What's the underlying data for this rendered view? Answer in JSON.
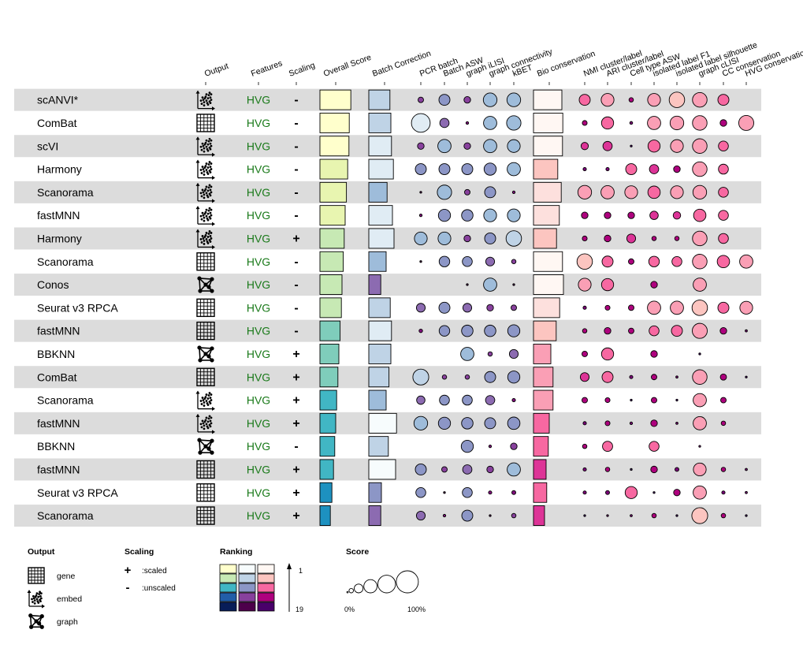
{
  "chart_data": {
    "type": "table",
    "columns": [
      {
        "key": "output",
        "label": "Output",
        "kind": "icon"
      },
      {
        "key": "features",
        "label": "Features",
        "kind": "text"
      },
      {
        "key": "scaling",
        "label": "Scaling",
        "kind": "text"
      },
      {
        "key": "overall",
        "label": "Overall Score",
        "kind": "bar",
        "palette": "overall"
      },
      {
        "key": "batch",
        "label": "Batch Correction",
        "kind": "bar",
        "palette": "batch"
      },
      {
        "key": "pcr",
        "label": "PCR batch",
        "kind": "circle",
        "palette": "batch"
      },
      {
        "key": "basw",
        "label": "Batch ASW",
        "kind": "circle",
        "palette": "batch"
      },
      {
        "key": "ilisi",
        "label": "graph iLISI",
        "kind": "circle",
        "palette": "batch"
      },
      {
        "key": "gconn",
        "label": "graph connectivity",
        "kind": "circle",
        "palette": "batch"
      },
      {
        "key": "kbet",
        "label": "kBET",
        "kind": "circle",
        "palette": "batch"
      },
      {
        "key": "bio",
        "label": "Bio conservation",
        "kind": "bar",
        "palette": "bio"
      },
      {
        "key": "nmi",
        "label": "NMI cluster/label",
        "kind": "circle",
        "palette": "bio"
      },
      {
        "key": "ari",
        "label": "ARI cluster/label",
        "kind": "circle",
        "palette": "bio"
      },
      {
        "key": "casw",
        "label": "Cell type ASW",
        "kind": "circle",
        "palette": "bio"
      },
      {
        "key": "if1",
        "label": "isolated label F1",
        "kind": "circle",
        "palette": "bio"
      },
      {
        "key": "isil",
        "label": "isolated label silhouette",
        "kind": "circle",
        "palette": "bio"
      },
      {
        "key": "clisi",
        "label": "graph cLISI",
        "kind": "circle",
        "palette": "bio"
      },
      {
        "key": "cc",
        "label": "CC conservation",
        "kind": "circle",
        "palette": "bio"
      },
      {
        "key": "hvg",
        "label": "HVG conservation",
        "kind": "circle",
        "palette": "bio"
      }
    ],
    "score_range": [
      0,
      1
    ],
    "rank_range": [
      1,
      19
    ],
    "rows": [
      {
        "method": "scANVI*",
        "output": "embed",
        "features": "HVG",
        "scaling": "-",
        "overall": 0.98,
        "batch": 0.67,
        "pcr": 0.25,
        "basw": 0.5,
        "ilisi": 0.3,
        "gconn": 0.62,
        "kbet": 0.62,
        "bio": 0.9,
        "nmi": 0.5,
        "ari": 0.58,
        "casw": 0.2,
        "if1": 0.58,
        "isil": 0.7,
        "clisi": 0.66,
        "cc": 0.5,
        "hvg": null
      },
      {
        "method": "ComBat",
        "output": "gene",
        "features": "HVG",
        "scaling": "-",
        "overall": 0.93,
        "batch": 0.7,
        "pcr": 0.85,
        "basw": 0.42,
        "ilisi": 0.12,
        "gconn": 0.6,
        "kbet": 0.65,
        "bio": 0.93,
        "nmi": 0.22,
        "ari": 0.55,
        "casw": 0.13,
        "if1": 0.6,
        "isil": 0.62,
        "clisi": 0.66,
        "cc": 0.3,
        "hvg": 0.68
      },
      {
        "method": "scVI",
        "output": "embed",
        "features": "HVG",
        "scaling": "-",
        "overall": 0.92,
        "batch": 0.72,
        "pcr": 0.3,
        "basw": 0.6,
        "ilisi": 0.3,
        "gconn": 0.6,
        "kbet": 0.58,
        "bio": 0.92,
        "nmi": 0.33,
        "ari": 0.42,
        "casw": 0.05,
        "if1": 0.55,
        "isil": 0.58,
        "clisi": 0.66,
        "cc": 0.45,
        "hvg": null
      },
      {
        "method": "Harmony",
        "output": "embed",
        "features": "HVG",
        "scaling": "-",
        "overall": 0.88,
        "batch": 0.78,
        "pcr": 0.5,
        "basw": 0.5,
        "ilisi": 0.5,
        "gconn": 0.55,
        "kbet": 0.6,
        "bio": 0.77,
        "nmi": 0.15,
        "ari": 0.15,
        "casw": 0.5,
        "if1": 0.42,
        "isil": 0.3,
        "clisi": 0.66,
        "cc": 0.45,
        "hvg": null
      },
      {
        "method": "Scanorama",
        "output": "embed",
        "features": "HVG",
        "scaling": "-",
        "overall": 0.84,
        "batch": 0.58,
        "pcr": 0.05,
        "basw": 0.65,
        "ilisi": 0.25,
        "gconn": 0.5,
        "kbet": 0.12,
        "bio": 0.88,
        "nmi": 0.62,
        "ari": 0.6,
        "casw": 0.58,
        "if1": 0.56,
        "isil": 0.58,
        "clisi": 0.62,
        "cc": 0.45,
        "hvg": null
      },
      {
        "method": "fastMNN",
        "output": "embed",
        "features": "HVG",
        "scaling": "-",
        "overall": 0.8,
        "batch": 0.75,
        "pcr": 0.12,
        "basw": 0.55,
        "ilisi": 0.52,
        "gconn": 0.58,
        "kbet": 0.58,
        "bio": 0.82,
        "nmi": 0.3,
        "ari": 0.3,
        "casw": 0.3,
        "if1": 0.38,
        "isil": 0.34,
        "clisi": 0.56,
        "cc": 0.45,
        "hvg": null
      },
      {
        "method": "Harmony",
        "output": "embed",
        "features": "HVG",
        "scaling": "+",
        "overall": 0.77,
        "batch": 0.8,
        "pcr": 0.58,
        "basw": 0.58,
        "ilisi": 0.3,
        "gconn": 0.5,
        "kbet": 0.7,
        "bio": 0.73,
        "nmi": 0.22,
        "ari": 0.3,
        "casw": 0.4,
        "if1": 0.2,
        "isil": 0.2,
        "clisi": 0.66,
        "cc": 0.45,
        "hvg": null
      },
      {
        "method": "Scanorama",
        "output": "gene",
        "features": "HVG",
        "scaling": "-",
        "overall": 0.74,
        "batch": 0.55,
        "pcr": 0.03,
        "basw": 0.48,
        "ilisi": 0.45,
        "gconn": 0.4,
        "kbet": 0.2,
        "bio": 0.92,
        "nmi": 0.7,
        "ari": 0.5,
        "casw": 0.25,
        "if1": 0.48,
        "isil": 0.45,
        "clisi": 0.66,
        "cc": 0.56,
        "hvg": 0.6
      },
      {
        "method": "Conos",
        "output": "graph",
        "features": "HVG",
        "scaling": "-",
        "overall": 0.7,
        "batch": 0.38,
        "pcr": null,
        "basw": null,
        "ilisi": 0.03,
        "gconn": 0.6,
        "kbet": 0.03,
        "bio": 0.95,
        "nmi": 0.58,
        "ari": 0.55,
        "casw": null,
        "if1": 0.3,
        "isil": null,
        "clisi": 0.6,
        "cc": null,
        "hvg": null
      },
      {
        "method": "Seurat v3 RPCA",
        "output": "gene",
        "features": "HVG",
        "scaling": "-",
        "overall": 0.68,
        "batch": 0.68,
        "pcr": 0.4,
        "basw": 0.5,
        "ilisi": 0.4,
        "gconn": 0.3,
        "kbet": 0.25,
        "bio": 0.83,
        "nmi": 0.15,
        "ari": 0.22,
        "casw": 0.25,
        "if1": 0.6,
        "isil": 0.6,
        "clisi": 0.7,
        "cc": 0.5,
        "hvg": 0.58
      },
      {
        "method": "fastMNN",
        "output": "gene",
        "features": "HVG",
        "scaling": "-",
        "overall": 0.64,
        "batch": 0.72,
        "pcr": 0.16,
        "basw": 0.48,
        "ilisi": 0.52,
        "gconn": 0.52,
        "kbet": 0.55,
        "bio": 0.72,
        "nmi": 0.2,
        "ari": 0.3,
        "casw": 0.25,
        "if1": 0.45,
        "isil": 0.5,
        "clisi": 0.68,
        "cc": 0.3,
        "hvg": 0.1
      },
      {
        "method": "BBKNN",
        "output": "graph",
        "features": "HVG",
        "scaling": "+",
        "overall": 0.6,
        "batch": 0.7,
        "pcr": null,
        "basw": null,
        "ilisi": 0.6,
        "gconn": 0.2,
        "kbet": 0.4,
        "bio": 0.55,
        "nmi": 0.25,
        "ari": 0.55,
        "casw": null,
        "if1": 0.3,
        "isil": null,
        "clisi": 0.05,
        "cc": null,
        "hvg": null
      },
      {
        "method": "ComBat",
        "output": "gene",
        "features": "HVG",
        "scaling": "+",
        "overall": 0.57,
        "batch": 0.64,
        "pcr": 0.72,
        "basw": 0.2,
        "ilisi": 0.2,
        "gconn": 0.5,
        "kbet": 0.55,
        "bio": 0.62,
        "nmi": 0.4,
        "ari": 0.5,
        "casw": 0.15,
        "if1": 0.25,
        "isil": 0.1,
        "clisi": 0.66,
        "cc": 0.28,
        "hvg": 0.06
      },
      {
        "method": "Scanorama",
        "output": "embed",
        "features": "HVG",
        "scaling": "+",
        "overall": 0.53,
        "batch": 0.55,
        "pcr": 0.38,
        "basw": 0.45,
        "ilisi": 0.45,
        "gconn": 0.42,
        "kbet": 0.15,
        "bio": 0.62,
        "nmi": 0.25,
        "ari": 0.22,
        "casw": 0.05,
        "if1": 0.25,
        "isil": 0.05,
        "clisi": 0.6,
        "cc": 0.25,
        "hvg": null
      },
      {
        "method": "fastMNN",
        "output": "embed",
        "features": "HVG",
        "scaling": "+",
        "overall": 0.5,
        "batch": 0.88,
        "pcr": 0.62,
        "basw": 0.55,
        "ilisi": 0.52,
        "gconn": 0.5,
        "kbet": 0.56,
        "bio": 0.5,
        "nmi": 0.15,
        "ari": 0.22,
        "casw": 0.12,
        "if1": 0.3,
        "isil": 0.1,
        "clisi": 0.6,
        "cc": 0.2,
        "hvg": null
      },
      {
        "method": "BBKNN",
        "output": "graph",
        "features": "HVG",
        "scaling": "-",
        "overall": 0.47,
        "batch": 0.62,
        "pcr": null,
        "basw": null,
        "ilisi": 0.55,
        "gconn": 0.12,
        "kbet": 0.3,
        "bio": 0.47,
        "nmi": 0.2,
        "ari": 0.46,
        "casw": null,
        "if1": 0.45,
        "isil": null,
        "clisi": 0.07,
        "cc": null,
        "hvg": null
      },
      {
        "method": "fastMNN",
        "output": "gene",
        "features": "HVG",
        "scaling": "+",
        "overall": 0.43,
        "batch": 0.85,
        "pcr": 0.5,
        "basw": 0.25,
        "ilisi": 0.42,
        "gconn": 0.3,
        "kbet": 0.6,
        "bio": 0.4,
        "nmi": 0.15,
        "ari": 0.2,
        "casw": 0.05,
        "if1": 0.3,
        "isil": 0.18,
        "clisi": 0.58,
        "cc": 0.2,
        "hvg": 0.1
      },
      {
        "method": "Seurat v3 RPCA",
        "output": "gene",
        "features": "HVG",
        "scaling": "+",
        "overall": 0.38,
        "batch": 0.4,
        "pcr": 0.45,
        "basw": 0.03,
        "ilisi": 0.45,
        "gconn": 0.15,
        "kbet": 0.18,
        "bio": 0.42,
        "nmi": 0.15,
        "ari": 0.18,
        "casw": 0.55,
        "if1": 0.03,
        "isil": 0.3,
        "clisi": 0.6,
        "cc": 0.15,
        "hvg": 0.1
      },
      {
        "method": "Scanorama",
        "output": "gene",
        "features": "HVG",
        "scaling": "+",
        "overall": 0.33,
        "batch": 0.38,
        "pcr": 0.4,
        "basw": 0.12,
        "ilisi": 0.5,
        "gconn": 0.05,
        "kbet": 0.2,
        "bio": 0.35,
        "nmi": 0.04,
        "ari": 0.08,
        "casw": 0.1,
        "if1": 0.2,
        "isil": 0.05,
        "clisi": 0.72,
        "cc": 0.2,
        "hvg": 0.04
      }
    ],
    "palettes": {
      "overall": [
        "#ffffcc",
        "#e8f5b0",
        "#c7e9b4",
        "#7fcdbb",
        "#41b6c4",
        "#1d91c0",
        "#225ea8",
        "#253494",
        "#081d58"
      ],
      "batch": [
        "#f7fcfd",
        "#e0ecf4",
        "#bfd3e6",
        "#9ebcda",
        "#8c96c6",
        "#8c6bb1",
        "#88419d",
        "#810f7c",
        "#4d004b"
      ],
      "bio": [
        "#fff7f3",
        "#fde0dd",
        "#fcc5c0",
        "#fa9fb5",
        "#f768a1",
        "#dd3497",
        "#ae017e",
        "#7a0177",
        "#49006a"
      ]
    },
    "legend": {
      "output": {
        "title": "Output",
        "items": [
          {
            "icon": "gene",
            "label": "gene"
          },
          {
            "icon": "embed",
            "label": "embed"
          },
          {
            "icon": "graph",
            "label": "graph"
          }
        ]
      },
      "scaling": {
        "title": "Scaling",
        "items": [
          {
            "symbol": "+",
            "label": ":scaled"
          },
          {
            "symbol": "-",
            "label": ":unscaled"
          }
        ]
      },
      "ranking": {
        "title": "Ranking",
        "top": "1",
        "bottom": "19"
      },
      "score": {
        "title": "Score",
        "min_label": "0%",
        "max_label": "100%",
        "levels": [
          0.0,
          0.2,
          0.4,
          0.6,
          0.8,
          1.0
        ]
      }
    }
  }
}
